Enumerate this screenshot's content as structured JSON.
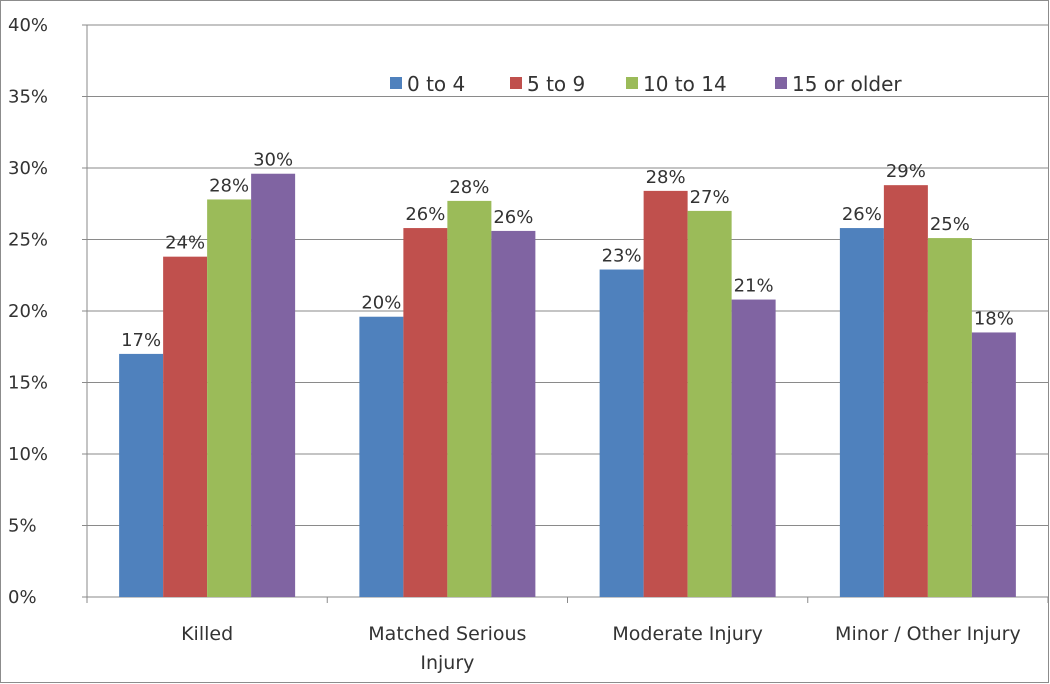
{
  "chart_data": {
    "type": "bar",
    "title": "",
    "xlabel": "",
    "ylabel": "",
    "ylim": [
      0,
      40
    ],
    "yticks": [
      "0%",
      "5%",
      "10%",
      "15%",
      "20%",
      "25%",
      "30%",
      "35%",
      "40%"
    ],
    "grid": true,
    "legend_position": "top-right",
    "categories": [
      [
        "Killed"
      ],
      [
        "Matched Serious",
        "Injury"
      ],
      [
        "Moderate Injury"
      ],
      [
        "Minor / Other Injury"
      ]
    ],
    "series": [
      {
        "name": "0 to 4",
        "color": "#4F81BD",
        "values": [
          17.0,
          19.6,
          22.9,
          25.8
        ],
        "labels": [
          "17%",
          "20%",
          "23%",
          "26%"
        ]
      },
      {
        "name": "5 to 9",
        "color": "#C0504D",
        "values": [
          23.8,
          25.8,
          28.4,
          28.8
        ],
        "labels": [
          "24%",
          "26%",
          "28%",
          "29%"
        ]
      },
      {
        "name": "10 to 14",
        "color": "#9BBB59",
        "values": [
          27.8,
          27.7,
          27.0,
          25.1
        ],
        "labels": [
          "28%",
          "28%",
          "27%",
          "25%"
        ]
      },
      {
        "name": "15 or older",
        "color": "#8064A2",
        "values": [
          29.6,
          25.6,
          20.8,
          18.5
        ],
        "labels": [
          "30%",
          "26%",
          "21%",
          "18%"
        ]
      }
    ]
  }
}
